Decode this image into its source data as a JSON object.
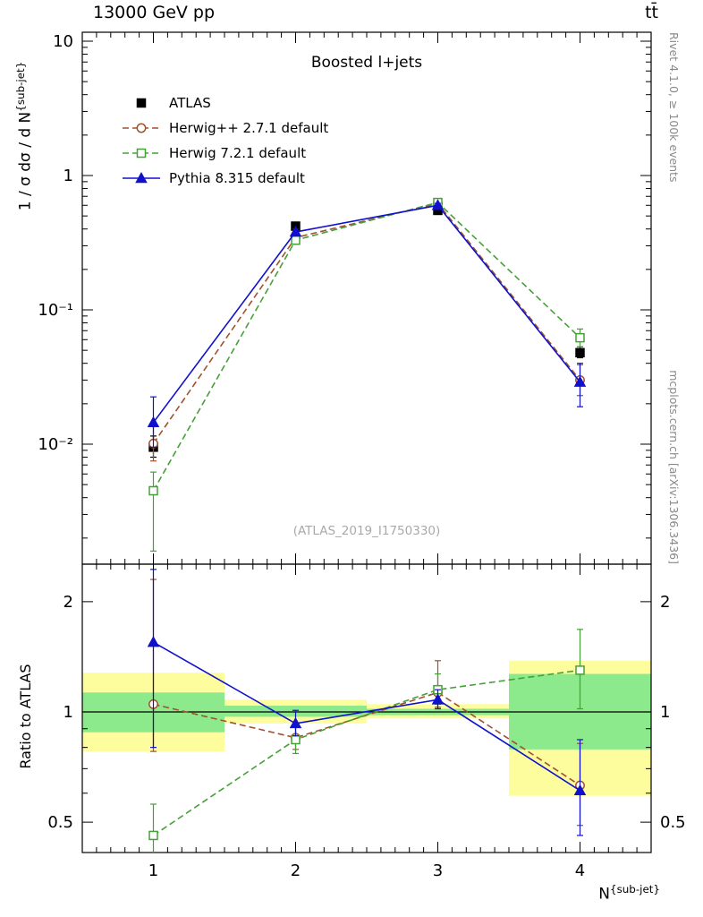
{
  "header": {
    "left": "13000 GeV pp",
    "right": "tt̄"
  },
  "side_notes": {
    "top_right": "Rivet 4.1.0, ≥ 100k events",
    "bottom_right": "mcplots.cern.ch [arXiv:1306.3436]"
  },
  "watermark": "(ATLAS_2019_I1750330)",
  "chart_data": {
    "type": "line",
    "title": "Boosted l+jets",
    "x_label": {
      "main": "N",
      "sup": "{sub-jet}"
    },
    "y_label_top": {
      "main": "1 / σ dσ / d N",
      "sup": "{sub-jet}"
    },
    "y_label_bottom": "Ratio to ATLAS",
    "xlim": [
      0.5,
      4.5
    ],
    "ylim_top": [
      0.00128,
      11.7
    ],
    "ylim_bottom": [
      0.41,
      2.53
    ],
    "x": [
      1,
      2,
      3,
      4
    ],
    "x_ticks": [
      {
        "v": 1,
        "label": "1"
      },
      {
        "v": 2,
        "label": "2"
      },
      {
        "v": 3,
        "label": "3"
      },
      {
        "v": 4,
        "label": "4"
      }
    ],
    "y_ticks_top": [
      {
        "v": 10,
        "label": "10"
      },
      {
        "v": 1,
        "label": "1"
      },
      {
        "v": 0.1,
        "label": "10⁻¹"
      },
      {
        "v": 0.01,
        "label": "10⁻²"
      }
    ],
    "y_ticks_bottom": [
      {
        "v": 2,
        "label": "2"
      },
      {
        "v": 1,
        "label": "1"
      },
      {
        "v": 0.5,
        "label": "0.5"
      }
    ],
    "band_yellow": "#fdfd9d",
    "band_green": "#8ce98c",
    "series": [
      {
        "name": "ATLAS",
        "color": "#000000",
        "marker": "square",
        "filled": true,
        "line": "none",
        "top": {
          "values": [
            0.0095,
            0.42,
            0.55,
            0.048
          ],
          "lo": [
            0.008,
            0.405,
            0.535,
            0.044
          ],
          "hi": [
            0.0115,
            0.435,
            0.565,
            0.053
          ]
        },
        "ratio": null
      },
      {
        "name": "Herwig++ 2.7.1 default",
        "color": "#a0522d",
        "marker": "circle",
        "filled": false,
        "line": "dashed",
        "top": {
          "values": [
            0.0101,
            0.345,
            0.62,
            0.03
          ],
          "lo": [
            0.0075,
            0.33,
            0.6,
            0.023
          ],
          "hi": [
            0.0135,
            0.36,
            0.645,
            0.039
          ]
        },
        "ratio": {
          "values": [
            1.05,
            0.85,
            1.13,
            0.63
          ],
          "lo": [
            0.78,
            0.79,
            1.03,
            0.49
          ],
          "hi": [
            2.3,
            0.92,
            1.38,
            0.82
          ]
        }
      },
      {
        "name": "Herwig 7.2.1 default",
        "color": "#46a038",
        "marker": "square",
        "filled": false,
        "line": "dashed",
        "top": {
          "values": [
            0.0045,
            0.33,
            0.63,
            0.062
          ],
          "lo": [
            0.0016,
            0.315,
            0.605,
            0.053
          ],
          "hi": [
            0.0062,
            0.35,
            0.655,
            0.072
          ]
        },
        "ratio": {
          "values": [
            0.46,
            0.84,
            1.15,
            1.3
          ],
          "lo": [
            0.33,
            0.77,
            1.05,
            1.02
          ],
          "hi": [
            0.56,
            0.91,
            1.27,
            1.68
          ]
        }
      },
      {
        "name": "Pythia 8.315 default",
        "color": "#1111cc",
        "marker": "triangle",
        "filled": true,
        "line": "solid",
        "top": {
          "values": [
            0.0145,
            0.38,
            0.6,
            0.029
          ],
          "lo": [
            0.0095,
            0.365,
            0.58,
            0.019
          ],
          "hi": [
            0.0225,
            0.4,
            0.62,
            0.04
          ]
        },
        "ratio": {
          "values": [
            1.55,
            0.93,
            1.08,
            0.61
          ],
          "lo": [
            0.8,
            0.86,
            1.02,
            0.46
          ],
          "hi": [
            2.45,
            1.01,
            1.15,
            0.84
          ]
        }
      }
    ],
    "bands": [
      {
        "bin": 1,
        "yellow": [
          0.78,
          1.28
        ],
        "green": [
          0.88,
          1.13
        ]
      },
      {
        "bin": 2,
        "yellow": [
          0.93,
          1.08
        ],
        "green": [
          0.97,
          1.04
        ]
      },
      {
        "bin": 3,
        "yellow": [
          0.96,
          1.05
        ],
        "green": [
          0.98,
          1.02
        ]
      },
      {
        "bin": 4,
        "yellow": [
          0.59,
          1.38
        ],
        "green": [
          0.79,
          1.27
        ]
      }
    ]
  }
}
